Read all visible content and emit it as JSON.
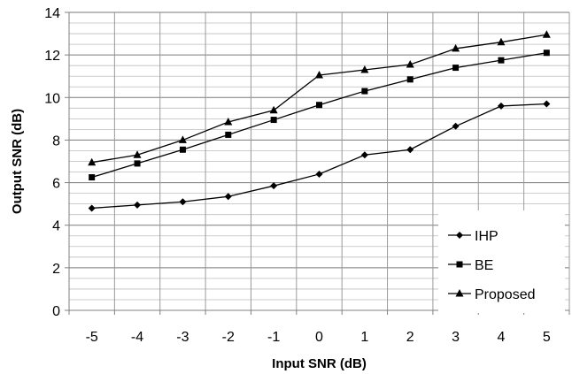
{
  "chart_data": {
    "type": "line",
    "title": "",
    "xlabel": "Input SNR (dB)",
    "ylabel": "Output SNR (dB)",
    "categories": [
      "-5",
      "-4",
      "-3",
      "-2",
      "-1",
      "0",
      "1",
      "2",
      "3",
      "4",
      "5"
    ],
    "yticks": [
      "0",
      "2",
      "4",
      "6",
      "8",
      "10",
      "12",
      "14"
    ],
    "ylim": [
      0,
      14
    ],
    "grid": true,
    "legend_position": "bottom-right",
    "series": [
      {
        "name": "IHP",
        "marker": "diamond",
        "color": "#000000",
        "values": [
          4.8,
          4.95,
          5.1,
          5.35,
          5.85,
          6.4,
          7.3,
          7.55,
          8.65,
          9.6,
          9.7
        ]
      },
      {
        "name": "BE",
        "marker": "square",
        "color": "#000000",
        "values": [
          6.25,
          6.9,
          7.55,
          8.25,
          8.95,
          9.65,
          10.3,
          10.85,
          11.4,
          11.75,
          12.1
        ]
      },
      {
        "name": "Proposed",
        "marker": "triangle",
        "color": "#000000",
        "values": [
          6.95,
          7.3,
          8.0,
          8.85,
          9.4,
          11.05,
          11.3,
          11.55,
          12.3,
          12.6,
          12.95
        ]
      }
    ]
  }
}
